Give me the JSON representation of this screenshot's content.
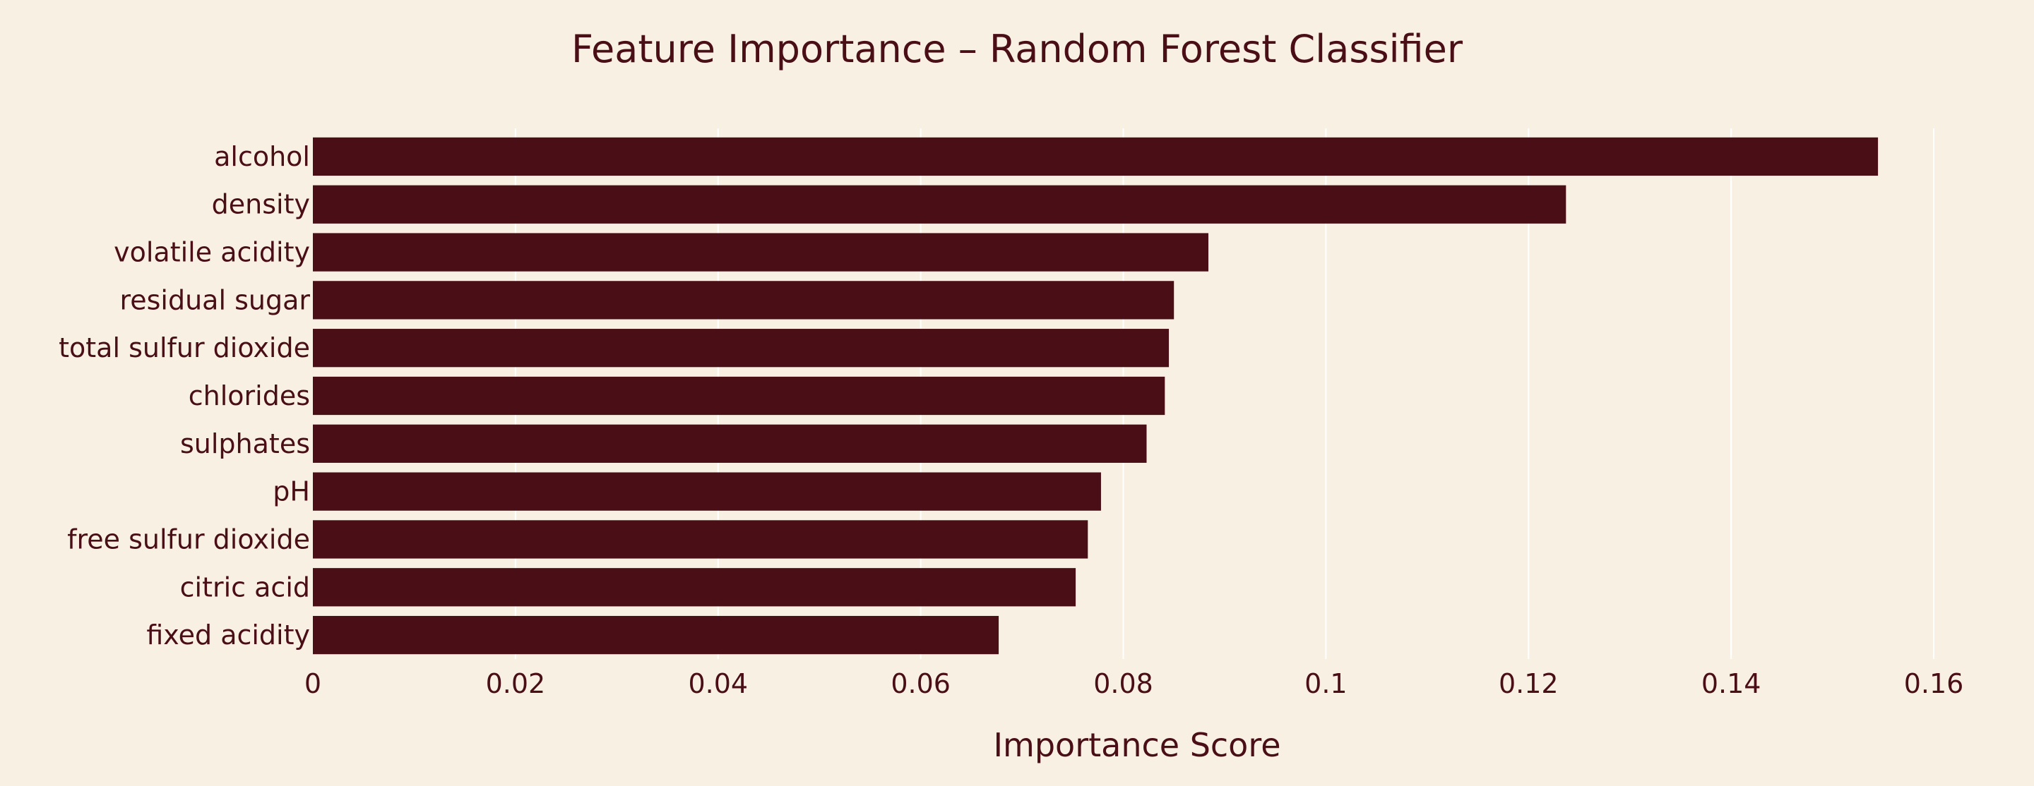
{
  "colors": {
    "background": "#f8f1e3",
    "bar": "#4a0e16",
    "text": "#4a0e16",
    "grid": "#ffffff"
  },
  "chart_data": {
    "type": "bar",
    "orientation": "horizontal",
    "title": "Feature Importance – Random Forest Classifier",
    "xlabel": "Importance Score",
    "ylabel": "",
    "xlim": [
      0,
      0.16
    ],
    "xticks": [
      0,
      0.02,
      0.04,
      0.06,
      0.08,
      0.1,
      0.12,
      0.14,
      0.16
    ],
    "xtick_labels": [
      "0",
      "0.02",
      "0.04",
      "0.06",
      "0.08",
      "0.1",
      "0.12",
      "0.14",
      "0.16"
    ],
    "grid": true,
    "categories": [
      "alcohol",
      "density",
      "volatile acidity",
      "residual sugar",
      "total sulfur dioxide",
      "chlorides",
      "sulphates",
      "pH",
      "free sulfur dioxide",
      "citric acid",
      "fixed acidity"
    ],
    "values": [
      0.1545,
      0.1237,
      0.0884,
      0.085,
      0.0845,
      0.0841,
      0.0823,
      0.0778,
      0.0765,
      0.0753,
      0.0677
    ]
  }
}
